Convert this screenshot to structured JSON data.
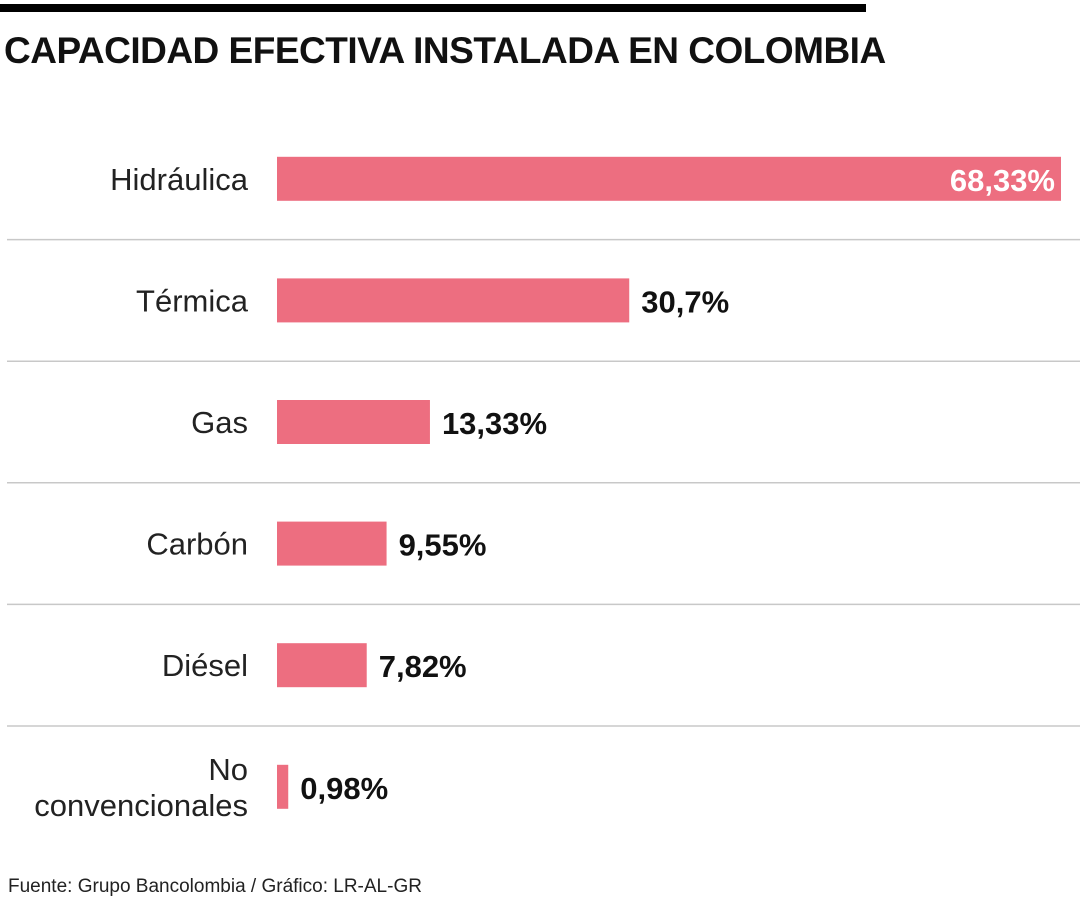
{
  "chart_data": {
    "type": "bar",
    "orientation": "horizontal",
    "title": "CAPACIDAD EFECTIVA INSTALADA EN COLOMBIA",
    "categories": [
      "Hidráulica",
      "Térmica",
      "Gas",
      "Carbón",
      "Diésel",
      "No convencionales"
    ],
    "category_lines": [
      [
        "Hidráulica"
      ],
      [
        "Térmica"
      ],
      [
        "Gas"
      ],
      [
        "Carbón"
      ],
      [
        "Diésel"
      ],
      [
        "No",
        "convencionales"
      ]
    ],
    "values": [
      68.33,
      30.7,
      13.33,
      9.55,
      7.82,
      0.98
    ],
    "value_labels": [
      "68,33%",
      "30,7%",
      "13,33%",
      "9,55%",
      "7,82%",
      "0,98%"
    ],
    "xlim": [
      0,
      68.33
    ],
    "bar_color": "#ed6e80",
    "grid": false,
    "source": "Fuente: Grupo Bancolombia / Gráfico: LR-AL-GR"
  }
}
